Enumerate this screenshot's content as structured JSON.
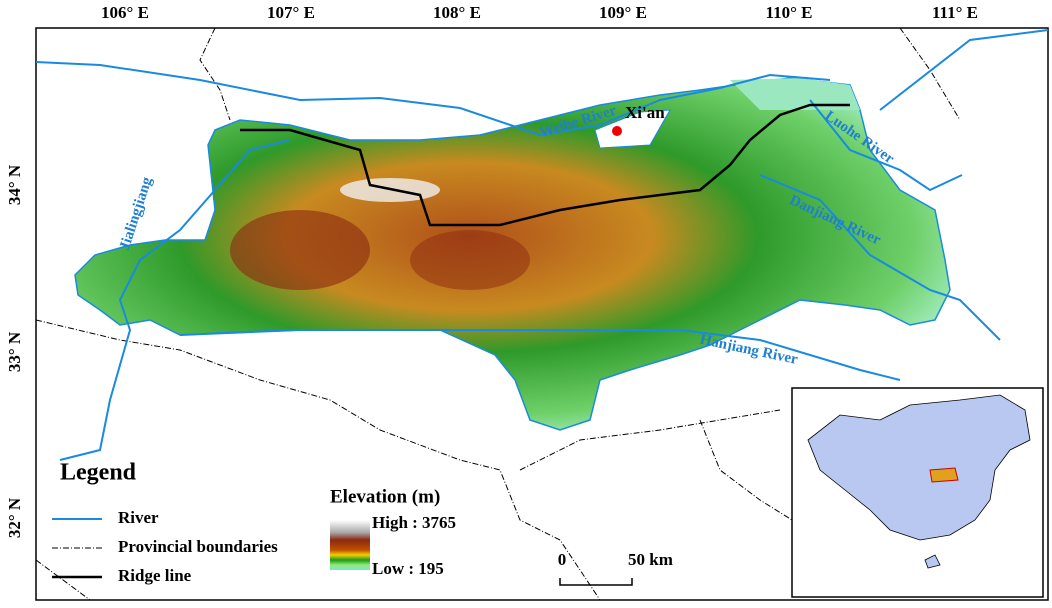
{
  "axes": {
    "longitude_labels": [
      "106° E",
      "107° E",
      "108° E",
      "109° E",
      "110° E",
      "111° E"
    ],
    "latitude_labels": [
      "34° N",
      "33° N",
      "32° N"
    ]
  },
  "places": {
    "city": "Xi'an"
  },
  "rivers": {
    "weihe": "Weihe River",
    "jialingjiang": "Jialingjiang",
    "luohe": "Luohe River",
    "danjiang": "Danjiang River",
    "hanjiang": "Hanjiang River"
  },
  "legend": {
    "title": "Legend",
    "river": "River",
    "boundaries": "Provincial boundaries",
    "ridge": "Ridge line"
  },
  "elevation": {
    "title": "Elevation (m)",
    "high": "High : 3765",
    "low": "Low : 195"
  },
  "scale_bar": {
    "start": "0",
    "end": "50 km"
  }
}
